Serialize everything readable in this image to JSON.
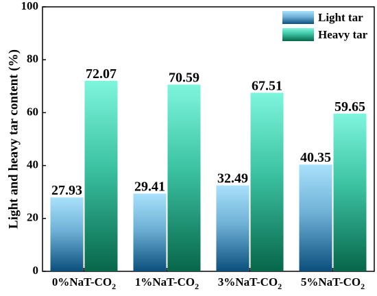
{
  "chart_data": {
    "type": "bar",
    "title": "",
    "xlabel": "",
    "ylabel": "Light and heavy tar content (%)",
    "ylim": [
      0,
      100
    ],
    "yticks": [
      0,
      20,
      40,
      60,
      80,
      100
    ],
    "grid": false,
    "legend_position": "top-right",
    "categories": [
      {
        "prefix": "0%NaT-CO",
        "sub": "2"
      },
      {
        "prefix": "1%NaT-CO",
        "sub": "2"
      },
      {
        "prefix": "3%NaT-CO",
        "sub": "2"
      },
      {
        "prefix": "5%NaT-CO",
        "sub": "2"
      }
    ],
    "series": [
      {
        "name": "Light tar",
        "values": [
          27.93,
          29.41,
          32.49,
          40.35
        ],
        "labels": [
          "27.93",
          "29.41",
          "32.49",
          "40.35"
        ],
        "color_top": "#a9e1fb",
        "color_bottom": "#0b4f7d"
      },
      {
        "name": "Heavy tar",
        "values": [
          72.07,
          70.59,
          67.51,
          59.65
        ],
        "labels": [
          "72.07",
          "70.59",
          "67.51",
          "59.65"
        ],
        "color_top": "#7ef5dd",
        "color_bottom": "#07664a"
      }
    ]
  }
}
